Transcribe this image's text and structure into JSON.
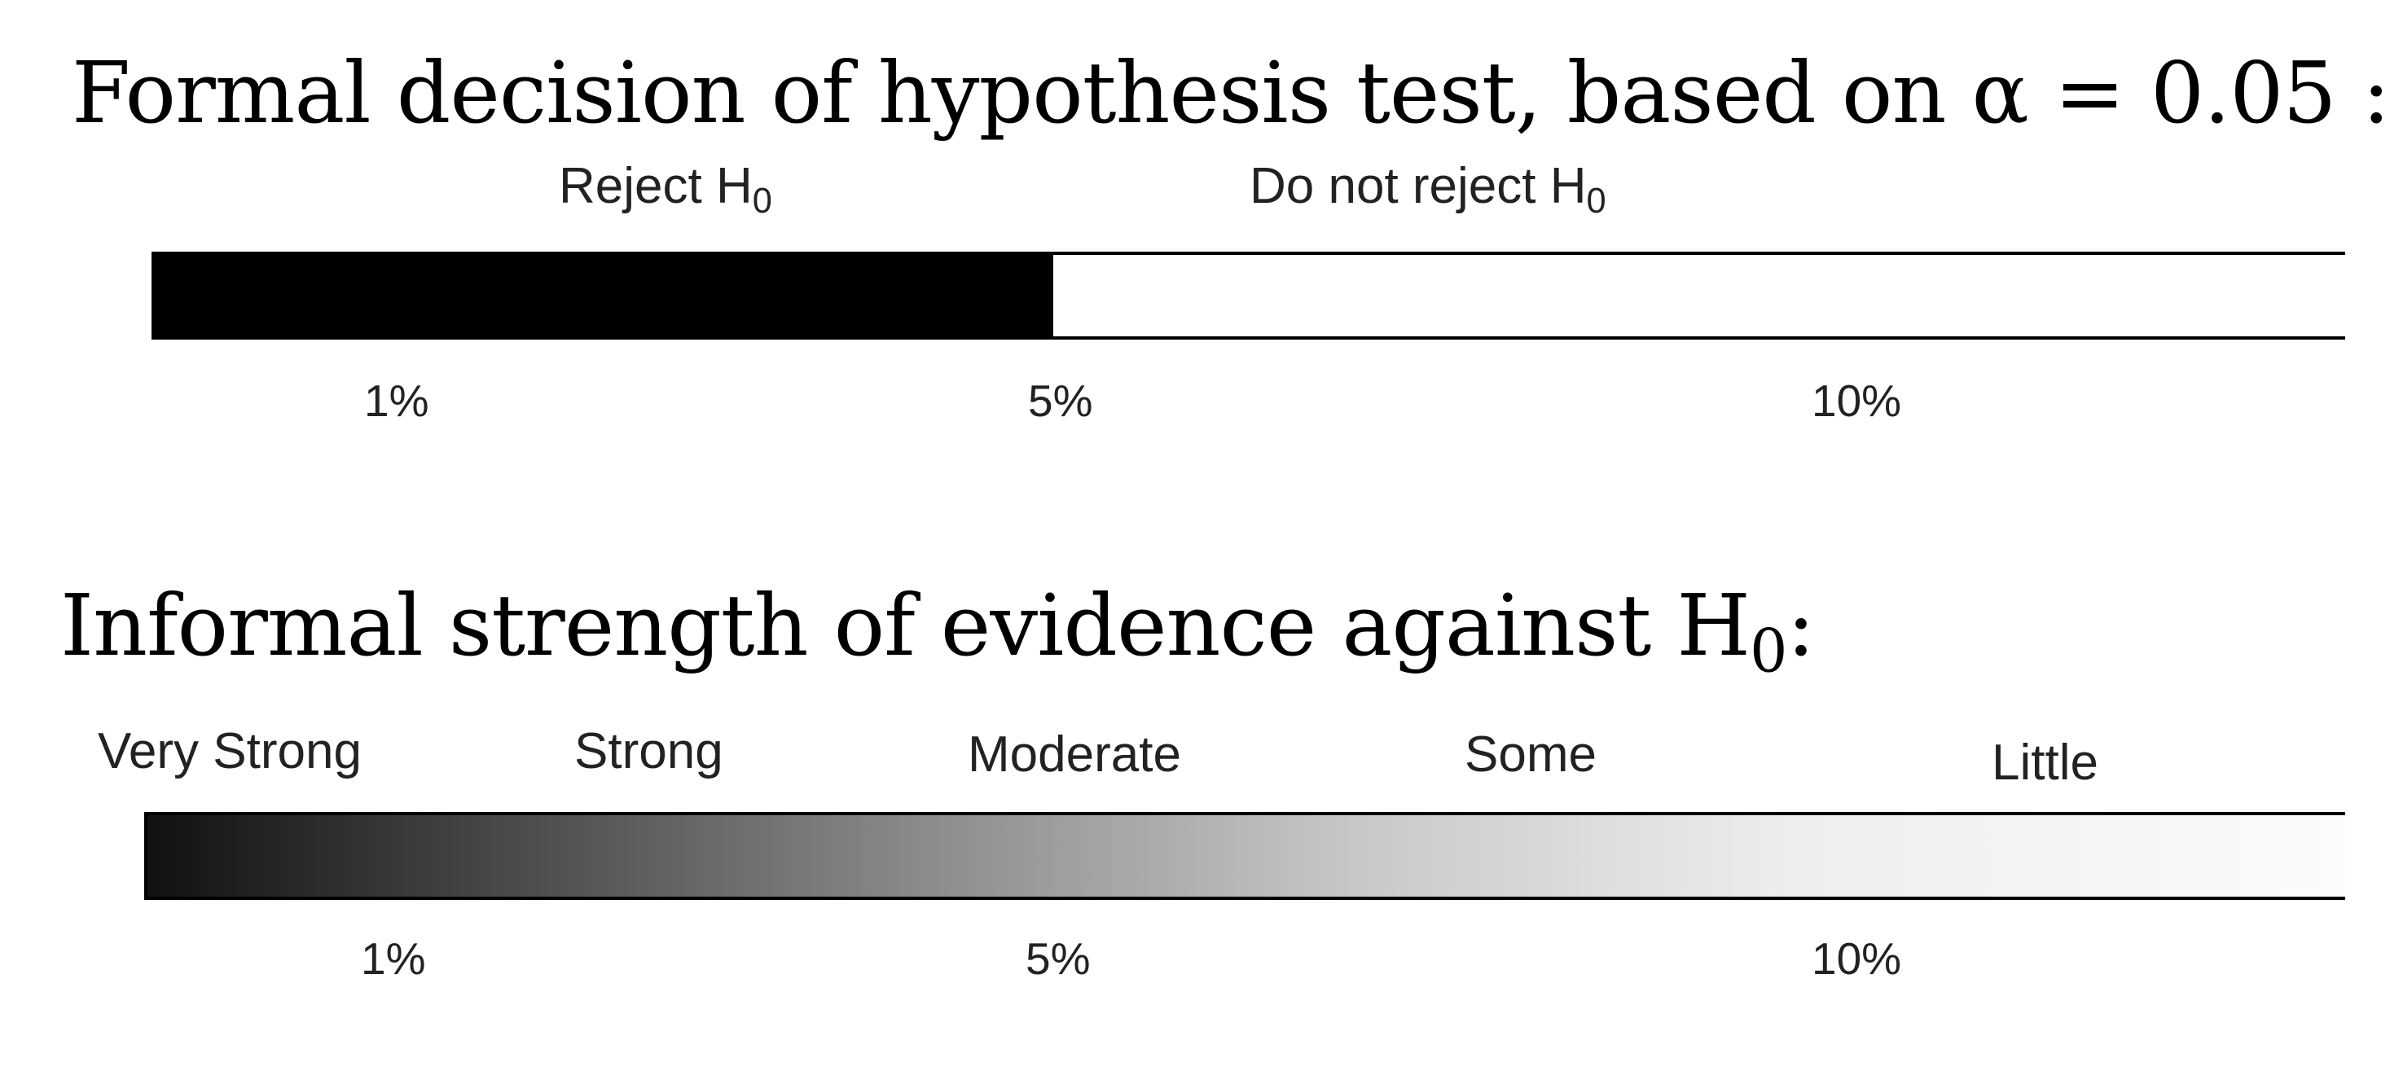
{
  "formal": {
    "title_text": "Formal decision of hypothesis test, based on ",
    "alpha_symbol": "α",
    "alpha_value": " = 0.05 :",
    "reject_label": "Reject H",
    "not_reject_label": "Do not reject H",
    "subscript_zero": "0",
    "ticks": [
      "1%",
      "5%",
      "10%"
    ],
    "reject_threshold_percent": 5,
    "fill_color": "#000000"
  },
  "informal": {
    "title_text": "Informal strength of evidence against H",
    "subscript_zero": "0",
    "title_suffix": ":",
    "categories": [
      "Very Strong",
      "Strong",
      "Moderate",
      "Some",
      "Little"
    ],
    "ticks": [
      "1%",
      "5%",
      "10%"
    ],
    "gradient": {
      "start_color": "#111111",
      "end_color": "#fbfbfb"
    }
  }
}
